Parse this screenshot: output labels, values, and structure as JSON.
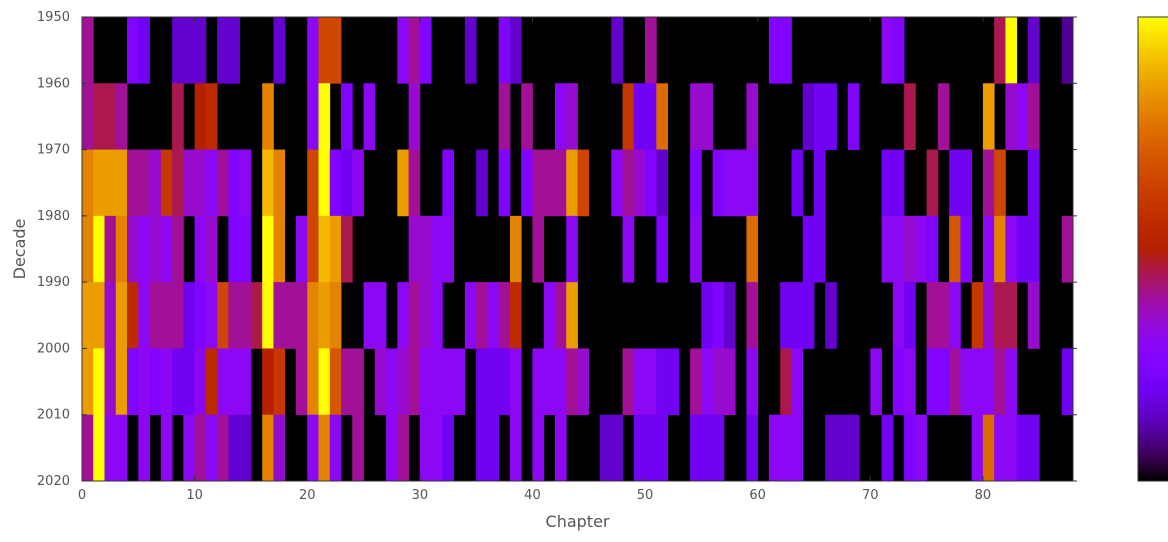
{
  "chart_data": {
    "type": "heatmap",
    "title": "",
    "xlabel": "Chapter",
    "ylabel": "Decade",
    "xlim": [
      0,
      88
    ],
    "ylim": [
      1950,
      2020
    ],
    "x_ticks": [
      "0",
      "10",
      "20",
      "30",
      "40",
      "50",
      "60",
      "70",
      "80"
    ],
    "y_ticks": [
      "1950",
      "1960",
      "1970",
      "1980",
      "1990",
      "2000",
      "2010",
      "2020"
    ],
    "colormap": "gnuplot",
    "colorbar": true,
    "colorbar_ticks": false,
    "grid": false,
    "rows": [
      "1950",
      "1960",
      "1970",
      "1980",
      "1990",
      "2000",
      "2010"
    ],
    "columns_count": 88,
    "value_scale": [
      0,
      1
    ],
    "values": [
      [
        0.4,
        0.0,
        0.0,
        0.0,
        0.25,
        0.2,
        0.0,
        0.0,
        0.15,
        0.15,
        0.15,
        0.0,
        0.15,
        0.15,
        0.0,
        0.0,
        0.0,
        0.15,
        0.0,
        0.0,
        0.3,
        0.65,
        0.65,
        0.0,
        0.0,
        0.0,
        0.0,
        0.0,
        0.3,
        0.4,
        0.25,
        0.0,
        0.0,
        0.0,
        0.15,
        0.0,
        0.0,
        0.25,
        0.15,
        0.0,
        0.0,
        0.0,
        0.0,
        0.0,
        0.0,
        0.0,
        0.0,
        0.15,
        0.0,
        0.0,
        0.4,
        0.0,
        0.0,
        0.0,
        0.0,
        0.0,
        0.0,
        0.0,
        0.0,
        0.0,
        0.0,
        0.25,
        0.25,
        0.0,
        0.0,
        0.0,
        0.0,
        0.0,
        0.0,
        0.0,
        0.0,
        0.3,
        0.25,
        0.0,
        0.0,
        0.0,
        0.0,
        0.0,
        0.0,
        0.0,
        0.0,
        0.45,
        1.0,
        0.0,
        0.15,
        0.0,
        0.0,
        0.1
      ],
      [
        0.4,
        0.45,
        0.45,
        0.4,
        0.0,
        0.0,
        0.0,
        0.0,
        0.45,
        0.0,
        0.5,
        0.55,
        0.0,
        0.0,
        0.0,
        0.0,
        0.8,
        0.0,
        0.0,
        0.0,
        0.3,
        1.0,
        0.0,
        0.25,
        0.0,
        0.3,
        0.0,
        0.0,
        0.0,
        0.35,
        0.0,
        0.0,
        0.0,
        0.0,
        0.0,
        0.0,
        0.0,
        0.4,
        0.0,
        0.4,
        0.0,
        0.0,
        0.3,
        0.35,
        0.0,
        0.0,
        0.0,
        0.0,
        0.6,
        0.2,
        0.2,
        0.75,
        0.0,
        0.0,
        0.35,
        0.35,
        0.0,
        0.0,
        0.0,
        0.35,
        0.0,
        0.0,
        0.0,
        0.0,
        0.15,
        0.2,
        0.2,
        0.0,
        0.25,
        0.0,
        0.0,
        0.0,
        0.0,
        0.45,
        0.0,
        0.0,
        0.4,
        0.0,
        0.0,
        0.0,
        0.85,
        0.0,
        0.35,
        0.3,
        0.4,
        0.0,
        0.0,
        0.0,
        0.4
      ],
      [
        0.8,
        0.85,
        0.85,
        0.85,
        0.4,
        0.4,
        0.35,
        0.6,
        0.45,
        0.35,
        0.35,
        0.3,
        0.4,
        0.25,
        0.3,
        0.0,
        0.9,
        0.8,
        0.0,
        0.0,
        0.65,
        1.0,
        0.25,
        0.2,
        0.3,
        0.0,
        0.0,
        0.0,
        0.85,
        0.4,
        0.0,
        0.0,
        0.25,
        0.0,
        0.0,
        0.15,
        0.0,
        0.25,
        0.0,
        0.25,
        0.4,
        0.4,
        0.4,
        0.85,
        0.65,
        0.0,
        0.0,
        0.3,
        0.4,
        0.35,
        0.25,
        0.15,
        0.0,
        0.0,
        0.25,
        0.0,
        0.25,
        0.3,
        0.3,
        0.3,
        0.0,
        0.0,
        0.0,
        0.2,
        0.0,
        0.2,
        0.0,
        0.0,
        0.0,
        0.0,
        0.0,
        0.2,
        0.2,
        0.0,
        0.0,
        0.45,
        0.0,
        0.2,
        0.2,
        0.0,
        0.4,
        0.65,
        0.0,
        0.0,
        0.2,
        0.0,
        0.0,
        0.0,
        0.45
      ],
      [
        0.8,
        1.0,
        0.4,
        0.8,
        0.35,
        0.3,
        0.35,
        0.3,
        0.4,
        0.0,
        0.3,
        0.35,
        0.0,
        0.25,
        0.25,
        0.0,
        1.0,
        0.8,
        0.0,
        0.3,
        0.65,
        0.9,
        0.85,
        0.45,
        0.0,
        0.0,
        0.0,
        0.0,
        0.0,
        0.35,
        0.35,
        0.3,
        0.3,
        0.0,
        0.0,
        0.0,
        0.0,
        0.0,
        0.8,
        0.0,
        0.4,
        0.0,
        0.0,
        0.3,
        0.0,
        0.0,
        0.0,
        0.0,
        0.3,
        0.0,
        0.0,
        0.25,
        0.0,
        0.0,
        0.3,
        0.0,
        0.0,
        0.0,
        0.0,
        0.75,
        0.0,
        0.0,
        0.0,
        0.0,
        0.2,
        0.2,
        0.0,
        0.0,
        0.0,
        0.0,
        0.0,
        0.3,
        0.3,
        0.35,
        0.3,
        0.25,
        0.0,
        0.7,
        0.25,
        0.0,
        0.3,
        0.8,
        0.3,
        0.2,
        0.2,
        0.0,
        0.0,
        0.4,
        0.6
      ],
      [
        0.85,
        0.85,
        0.35,
        0.85,
        0.55,
        0.3,
        0.4,
        0.4,
        0.4,
        0.2,
        0.25,
        0.3,
        0.65,
        0.4,
        0.4,
        0.45,
        1.0,
        0.4,
        0.4,
        0.4,
        0.8,
        0.85,
        0.8,
        0.0,
        0.0,
        0.3,
        0.3,
        0.0,
        0.3,
        0.4,
        0.35,
        0.3,
        0.0,
        0.0,
        0.3,
        0.4,
        0.3,
        0.4,
        0.55,
        0.0,
        0.0,
        0.3,
        0.4,
        0.85,
        0.0,
        0.0,
        0.0,
        0.0,
        0.0,
        0.0,
        0.0,
        0.0,
        0.0,
        0.0,
        0.0,
        0.2,
        0.25,
        0.15,
        0.0,
        0.4,
        0.0,
        0.0,
        0.2,
        0.2,
        0.2,
        0.0,
        0.15,
        0.0,
        0.0,
        0.0,
        0.0,
        0.0,
        0.3,
        0.2,
        0.0,
        0.4,
        0.4,
        0.3,
        0.0,
        0.6,
        0.35,
        0.45,
        0.45,
        0.0,
        0.35,
        0.0,
        0.0,
        0.0,
        0.45
      ],
      [
        0.85,
        1.0,
        0.35,
        0.85,
        0.25,
        0.3,
        0.25,
        0.3,
        0.2,
        0.2,
        0.3,
        0.55,
        0.3,
        0.3,
        0.3,
        0.0,
        0.5,
        0.6,
        0.0,
        0.4,
        0.8,
        1.0,
        0.7,
        0.4,
        0.4,
        0.0,
        0.35,
        0.3,
        0.35,
        0.4,
        0.3,
        0.3,
        0.3,
        0.3,
        0.0,
        0.2,
        0.2,
        0.2,
        0.3,
        0.0,
        0.3,
        0.3,
        0.3,
        0.4,
        0.35,
        0.0,
        0.0,
        0.0,
        0.4,
        0.3,
        0.3,
        0.2,
        0.2,
        0.0,
        0.4,
        0.3,
        0.35,
        0.35,
        0.0,
        0.3,
        0.0,
        0.0,
        0.45,
        0.3,
        0.0,
        0.0,
        0.0,
        0.0,
        0.0,
        0.0,
        0.3,
        0.0,
        0.25,
        0.3,
        0.0,
        0.25,
        0.25,
        0.4,
        0.3,
        0.3,
        0.3,
        0.4,
        0.3,
        0.0,
        0.0,
        0.0,
        0.0,
        0.2,
        0.45
      ],
      [
        0.4,
        1.0,
        0.3,
        0.3,
        0.0,
        0.3,
        0.0,
        0.3,
        0.0,
        0.3,
        0.4,
        0.3,
        0.4,
        0.15,
        0.15,
        0.0,
        0.8,
        0.35,
        0.0,
        0.0,
        0.3,
        0.8,
        0.3,
        0.0,
        0.4,
        0.0,
        0.0,
        0.3,
        0.4,
        0.0,
        0.3,
        0.3,
        0.2,
        0.0,
        0.0,
        0.2,
        0.2,
        0.0,
        0.3,
        0.0,
        0.3,
        0.0,
        0.3,
        0.0,
        0.0,
        0.0,
        0.15,
        0.15,
        0.0,
        0.2,
        0.2,
        0.2,
        0.0,
        0.0,
        0.2,
        0.2,
        0.2,
        0.0,
        0.0,
        0.2,
        0.0,
        0.3,
        0.3,
        0.3,
        0.0,
        0.0,
        0.15,
        0.15,
        0.15,
        0.0,
        0.0,
        0.2,
        0.0,
        0.25,
        0.3,
        0.0,
        0.0,
        0.0,
        0.0,
        0.3,
        0.75,
        0.3,
        0.3,
        0.2,
        0.2,
        0.0,
        0.0,
        0.0,
        0.8
      ]
    ]
  }
}
